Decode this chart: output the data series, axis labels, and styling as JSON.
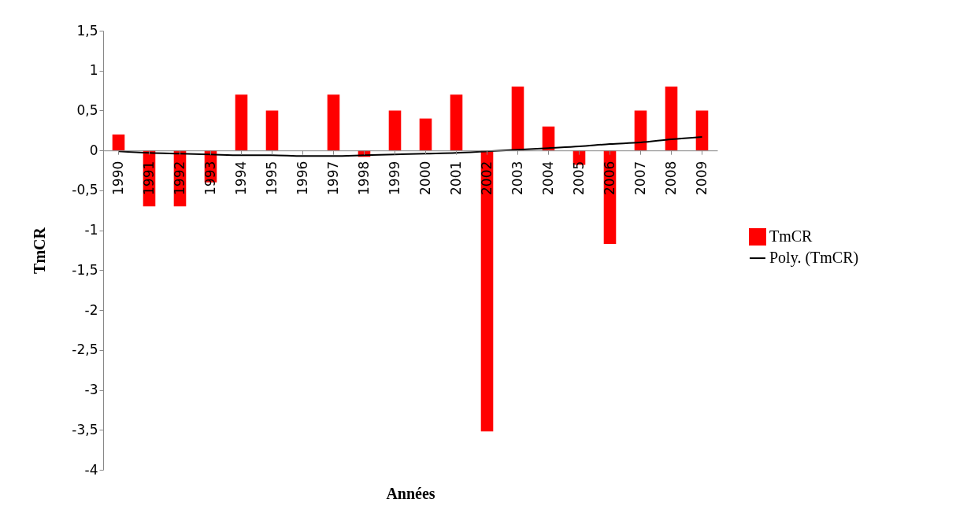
{
  "chart_data": {
    "type": "bar",
    "xlabel": "Années",
    "ylabel": "TmCR",
    "categories": [
      "1990",
      "1991",
      "1992",
      "1993",
      "1994",
      "1995",
      "1996",
      "1997",
      "1998",
      "1999",
      "2000",
      "2001",
      "2002",
      "2003",
      "2004",
      "2005",
      "2006",
      "2007",
      "2008",
      "2009"
    ],
    "series": [
      {
        "name": "TmCR",
        "color": "#ff0000",
        "values": [
          0.2,
          -0.7,
          -0.7,
          -0.4,
          0.7,
          0.5,
          0,
          0.7,
          -0.08,
          0.5,
          0.4,
          0.7,
          -3.52,
          0.8,
          0.3,
          -0.18,
          -1.17,
          0.5,
          0.8,
          0.5
        ]
      },
      {
        "name": "Poly. (TmCR)",
        "type": "line",
        "color": "#000000",
        "values": [
          -0.01,
          -0.03,
          -0.04,
          -0.05,
          -0.06,
          -0.06,
          -0.07,
          -0.07,
          -0.06,
          -0.05,
          -0.04,
          -0.03,
          -0.01,
          0.01,
          0.03,
          0.05,
          0.08,
          0.1,
          0.14,
          0.17
        ]
      }
    ],
    "ylim": [
      -4,
      1.5
    ],
    "yticks": [
      {
        "value": -4,
        "label": "-4"
      },
      {
        "value": -3.5,
        "label": "-3,5"
      },
      {
        "value": -3,
        "label": "-3"
      },
      {
        "value": -2.5,
        "label": "-2,5"
      },
      {
        "value": -2,
        "label": "-2"
      },
      {
        "value": -1.5,
        "label": "-1,5"
      },
      {
        "value": -1,
        "label": "-1"
      },
      {
        "value": -0.5,
        "label": "-0,5"
      },
      {
        "value": 0,
        "label": "0"
      },
      {
        "value": 0.5,
        "label": "0,5"
      },
      {
        "value": 1,
        "label": "1"
      },
      {
        "value": 1.5,
        "label": "1,5"
      }
    ],
    "grid": false,
    "legend": "right"
  }
}
